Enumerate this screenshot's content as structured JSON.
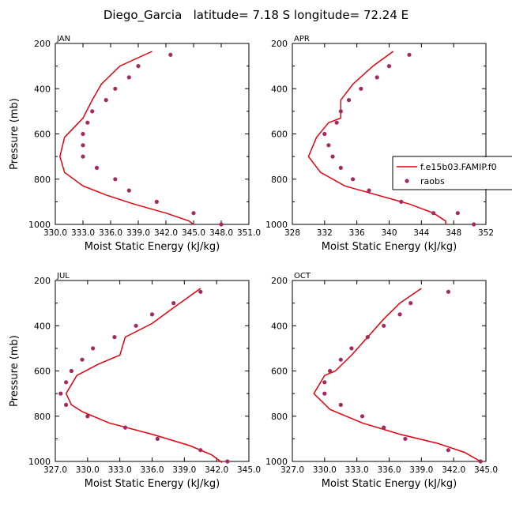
{
  "figure_title": "Diego_Garcia   latitude= 7.18 S longitude= 72.24 E",
  "colors": {
    "model": "#e8000b",
    "obs": "#a52a5f",
    "axis": "#000000"
  },
  "legend": {
    "model_label": "f.e15b03.FAMIP.f0",
    "obs_label": "raobs",
    "placement": "right edge of APR panel"
  },
  "chart_data": [
    {
      "type": "line",
      "panel": "JAN",
      "title": "JAN",
      "xlabel": "Moist Static Energy (kJ/kg)",
      "ylabel": "Pressure (mb)",
      "xlim": [
        330.0,
        351.0
      ],
      "ylim": [
        1000,
        200
      ],
      "xtick_values": [
        330.0,
        333.0,
        336.0,
        339.0,
        342.0,
        345.0,
        348.0,
        351.0
      ],
      "xtick_labels": [
        "330.0",
        "333.0",
        "336.0",
        "339.0",
        "342.0",
        "345.0",
        "348.0",
        "351.0"
      ],
      "ytick_values": [
        200,
        400,
        600,
        800,
        1000
      ],
      "ytick_labels": [
        "200",
        "400",
        "600",
        "800",
        "1000"
      ],
      "series": [
        {
          "name": "f.e15b03.FAMIP.f0",
          "kind": "line",
          "x": [
            340.5,
            337.0,
            335.0,
            334.0,
            333.0,
            331.0,
            330.5,
            331.0,
            333.0,
            335.5,
            338.5,
            342.0,
            344.5,
            345.0
          ],
          "y": [
            235,
            300,
            380,
            450,
            530,
            615,
            700,
            770,
            830,
            870,
            910,
            950,
            985,
            1000
          ]
        },
        {
          "name": "raobs",
          "kind": "scatter",
          "x": [
            342.5,
            339.0,
            338.0,
            336.5,
            335.5,
            334.0,
            333.5,
            333.0,
            333.0,
            333.0,
            334.5,
            336.5,
            338.0,
            341.0,
            345.0,
            348.0
          ],
          "y": [
            250,
            300,
            350,
            400,
            450,
            500,
            550,
            600,
            650,
            700,
            750,
            800,
            850,
            900,
            950,
            1000
          ]
        }
      ]
    },
    {
      "type": "line",
      "panel": "APR",
      "title": "APR",
      "xlabel": "Moist Static Energy (kJ/kg)",
      "ylabel": "",
      "xlim": [
        328,
        352
      ],
      "ylim": [
        1000,
        200
      ],
      "xtick_values": [
        328,
        332,
        336,
        340,
        344,
        348,
        352
      ],
      "xtick_labels": [
        "328",
        "332",
        "336",
        "340",
        "344",
        "348",
        "352"
      ],
      "ytick_values": [
        200,
        400,
        600,
        800,
        1000
      ],
      "ytick_labels": [
        "200",
        "400",
        "600",
        "800",
        "1000"
      ],
      "series": [
        {
          "name": "f.e15b03.FAMIP.f0",
          "kind": "line",
          "x": [
            340.5,
            338.0,
            335.5,
            334.0,
            334.0,
            332.5,
            331.0,
            330.0,
            331.5,
            334.5,
            338.5,
            342.5,
            345.5,
            347.0,
            347.0
          ],
          "y": [
            235,
            300,
            380,
            450,
            530,
            550,
            615,
            700,
            770,
            830,
            870,
            910,
            950,
            985,
            1000
          ]
        },
        {
          "name": "raobs",
          "kind": "scatter",
          "x": [
            342.5,
            340.0,
            338.5,
            336.5,
            335.0,
            334.0,
            333.5,
            332.0,
            332.5,
            333.0,
            334.0,
            335.5,
            337.5,
            341.5,
            345.5,
            348.5,
            350.5
          ],
          "y": [
            250,
            300,
            350,
            400,
            450,
            500,
            550,
            600,
            650,
            700,
            750,
            800,
            850,
            900,
            950,
            950,
            1000
          ]
        }
      ]
    },
    {
      "type": "line",
      "panel": "JUL",
      "title": "JUL",
      "xlabel": "Moist Static Energy (kJ/kg)",
      "ylabel": "Pressure (mb)",
      "xlim": [
        327.0,
        345.0
      ],
      "ylim": [
        1000,
        200
      ],
      "xtick_values": [
        327.0,
        330.0,
        333.0,
        336.0,
        339.0,
        342.0,
        345.0
      ],
      "xtick_labels": [
        "327.0",
        "330.0",
        "333.0",
        "336.0",
        "339.0",
        "342.0",
        "345.0"
      ],
      "ytick_values": [
        200,
        400,
        600,
        800,
        1000
      ],
      "ytick_labels": [
        "200",
        "400",
        "600",
        "800",
        "1000"
      ],
      "series": [
        {
          "name": "f.e15b03.FAMIP.f0",
          "kind": "line",
          "x": [
            340.5,
            338.0,
            336.0,
            333.5,
            333.0,
            331.0,
            329.0,
            328.0,
            328.5,
            329.5,
            332.0,
            336.0,
            339.5,
            341.5,
            342.5
          ],
          "y": [
            235,
            320,
            390,
            450,
            530,
            570,
            620,
            700,
            750,
            780,
            830,
            880,
            930,
            970,
            1005
          ]
        },
        {
          "name": "raobs",
          "kind": "scatter",
          "x": [
            340.5,
            338.0,
            336.0,
            334.5,
            332.5,
            330.5,
            329.5,
            328.5,
            328.0,
            327.5,
            328.0,
            330.0,
            333.5,
            336.5,
            340.5,
            343.0
          ],
          "y": [
            250,
            300,
            350,
            400,
            450,
            500,
            550,
            600,
            650,
            700,
            750,
            800,
            850,
            900,
            950,
            1000
          ]
        }
      ]
    },
    {
      "type": "line",
      "panel": "OCT",
      "title": "OCT",
      "xlabel": "Moist Static Energy (kJ/kg)",
      "ylabel": "",
      "xlim": [
        327.0,
        345.0
      ],
      "ylim": [
        1000,
        200
      ],
      "xtick_values": [
        327.0,
        330.0,
        333.0,
        336.0,
        339.0,
        342.0,
        345.0
      ],
      "xtick_labels": [
        "327.0",
        "330.0",
        "333.0",
        "336.0",
        "339.0",
        "342.0",
        "345.0"
      ],
      "ytick_values": [
        200,
        400,
        600,
        800,
        1000
      ],
      "ytick_labels": [
        "200",
        "400",
        "600",
        "800",
        "1000"
      ],
      "series": [
        {
          "name": "f.e15b03.FAMIP.f0",
          "kind": "line",
          "x": [
            339.0,
            337.0,
            335.5,
            334.0,
            332.5,
            331.0,
            330.0,
            329.0,
            330.5,
            333.5,
            337.0,
            340.5,
            343.0,
            344.5
          ],
          "y": [
            235,
            300,
            370,
            450,
            530,
            600,
            620,
            700,
            770,
            830,
            880,
            920,
            960,
            1000
          ]
        },
        {
          "name": "raobs",
          "kind": "scatter",
          "x": [
            341.5,
            338.0,
            337.0,
            335.5,
            334.0,
            332.5,
            331.5,
            330.5,
            330.0,
            330.0,
            331.5,
            333.5,
            335.5,
            337.5,
            341.5,
            344.5
          ],
          "y": [
            250,
            300,
            350,
            400,
            450,
            500,
            550,
            600,
            650,
            700,
            750,
            800,
            850,
            900,
            950,
            1000
          ]
        }
      ]
    }
  ]
}
